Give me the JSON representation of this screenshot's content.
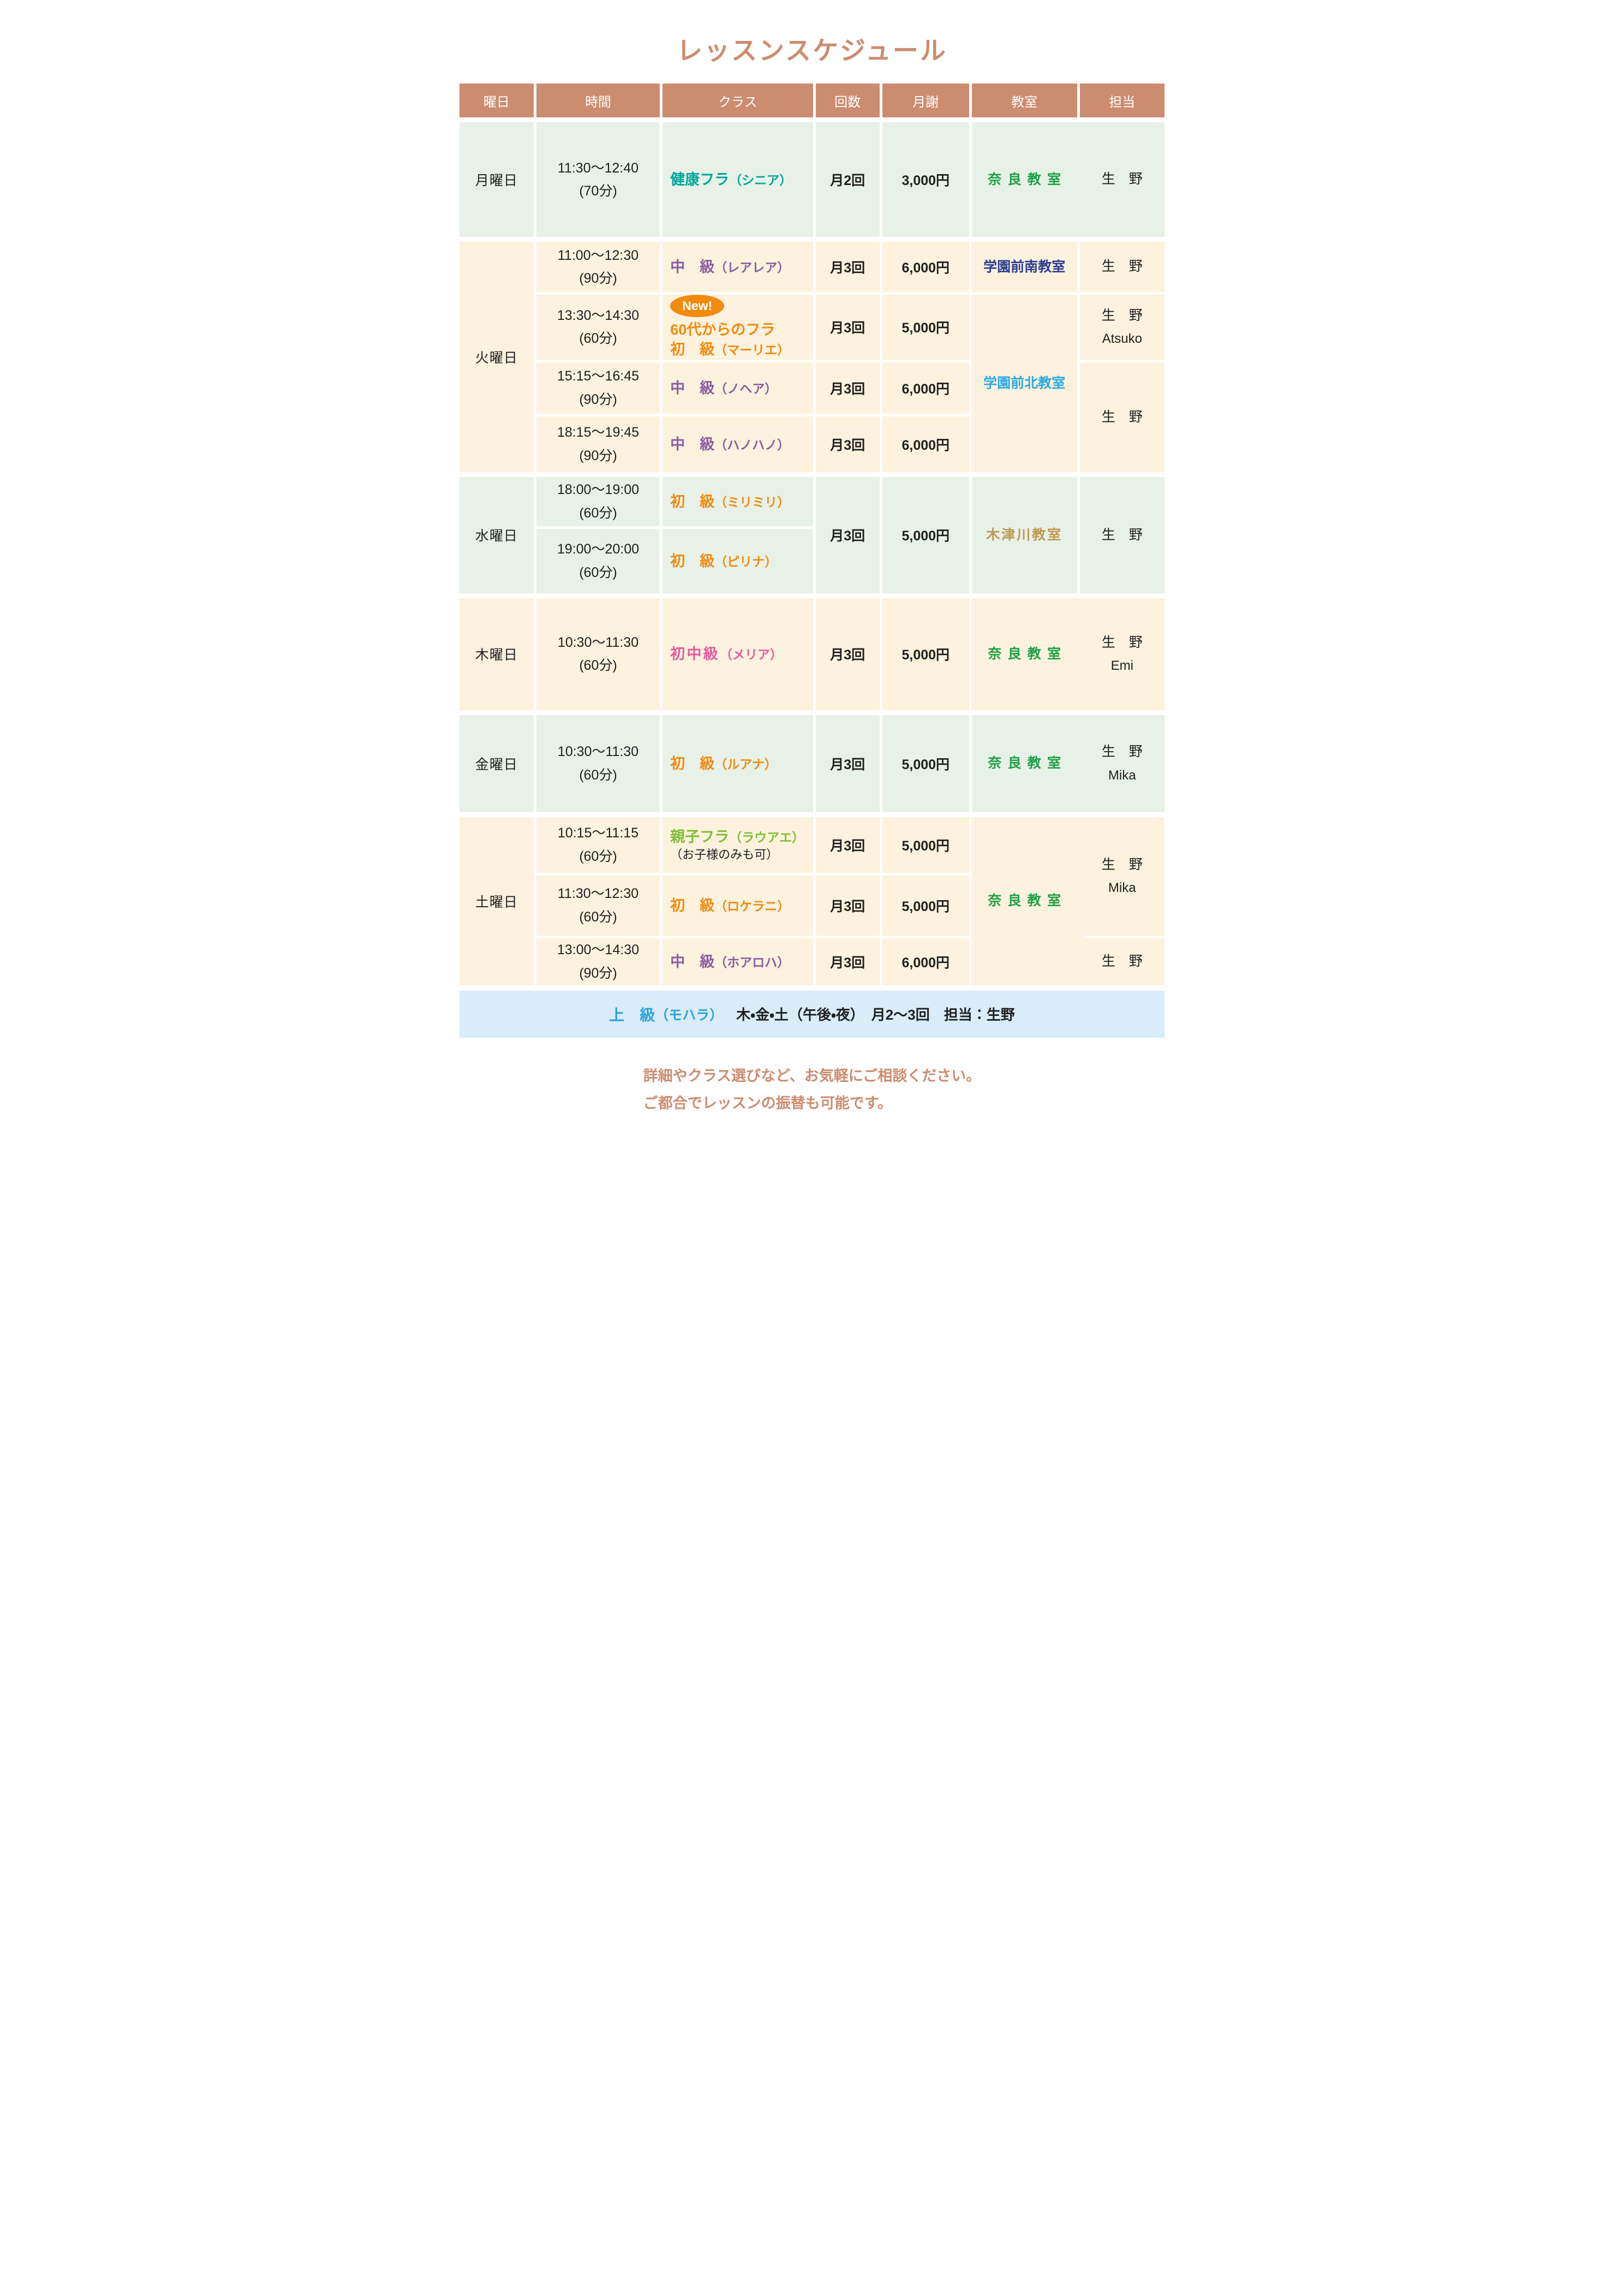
{
  "title": "レッスンスケジュール",
  "header": {
    "columns": [
      "曜日",
      "時間",
      "クラス",
      "回数",
      "月謝",
      "教室",
      "担当"
    ]
  },
  "colors": {
    "accent_salmon": "#CC8C70",
    "class_teal": "#00A79B",
    "class_purple": "#8B5BA4",
    "class_orange": "#F28A0E",
    "class_pink": "#E75A9F",
    "class_lime": "#7FBE38",
    "room_green": "#1FA046",
    "room_navy": "#2B3D8F",
    "room_skyblue": "#2BA9E1",
    "room_gold": "#BC9A52",
    "banner_text_blue": "#2AA3DE",
    "row_green_bg": "#E8F1E8",
    "row_cream_bg": "#FCF2DD",
    "banner_bg": "#D9ECF8"
  },
  "days": [
    {
      "label": "月曜日",
      "rows": [
        {
          "time": "11:30～12:40",
          "duration": "(70分)",
          "class_main": "健康フラ",
          "class_note": "（シニア）",
          "count": "月2回",
          "fee": "3,000円"
        }
      ],
      "rooms": [
        {
          "name": "奈良教室"
        }
      ],
      "staff": [
        {
          "name": "生　野"
        }
      ]
    },
    {
      "label": "火曜日",
      "rows": [
        {
          "time": "11:00～12:30",
          "duration": "(90分)",
          "class_main": "中　級",
          "class_note": "（レアレア）",
          "count": "月3回",
          "fee": "6,000円"
        },
        {
          "badge": "New!",
          "class_line": "60代からのフラ",
          "time": "13:30～14:30",
          "duration": "(60分)",
          "class_main": "初　級",
          "class_note": "（マーリエ）",
          "count": "月3回",
          "fee": "5,000円"
        },
        {
          "time": "15:15～16:45",
          "duration": "(90分)",
          "class_main": "中　級",
          "class_note": "（ノヘア）",
          "count": "月3回",
          "fee": "6,000円"
        },
        {
          "time": "18:15～19:45",
          "duration": "(90分)",
          "class_main": "中　級",
          "class_note": "（ハノハノ）",
          "count": "月3回",
          "fee": "6,000円"
        }
      ],
      "rooms": [
        {
          "name": "学園前南教室"
        },
        {
          "name": "学園前北教室"
        }
      ],
      "staff": [
        {
          "name": "生　野"
        },
        {
          "name": "生　野",
          "name2": "Atsuko"
        },
        {
          "name": "生　野"
        }
      ]
    },
    {
      "label": "水曜日",
      "rows": [
        {
          "time": "18:00～19:00",
          "duration": "(60分)",
          "class_main": "初　級",
          "class_note": "（ミリミリ）"
        },
        {
          "time": "19:00～20:00",
          "duration": "(60分)",
          "class_main": "初　級",
          "class_note": "（ピリナ）"
        }
      ],
      "shared": {
        "count": "月3回",
        "fee": "5,000円"
      },
      "rooms": [
        {
          "name": "木津川教室"
        }
      ],
      "staff": [
        {
          "name": "生　野"
        }
      ]
    },
    {
      "label": "木曜日",
      "rows": [
        {
          "time": "10:30～11:30",
          "duration": "(60分)",
          "class_main": "初中級",
          "class_note": "（メリア）",
          "count": "月3回",
          "fee": "5,000円"
        }
      ],
      "rooms": [
        {
          "name": "奈良教室"
        }
      ],
      "staff": [
        {
          "name": "生　野",
          "name2": "Emi"
        }
      ]
    },
    {
      "label": "金曜日",
      "rows": [
        {
          "time": "10:30～11:30",
          "duration": "(60分)",
          "class_main": "初　級",
          "class_note": "（ルアナ）",
          "count": "月3回",
          "fee": "5,000円"
        }
      ],
      "rooms": [
        {
          "name": "奈良教室"
        }
      ],
      "staff": [
        {
          "name": "生　野",
          "name2": "Mika"
        }
      ]
    },
    {
      "label": "土曜日",
      "rows": [
        {
          "time": "10:15～11:15",
          "duration": "(60分)",
          "class_main": "親子フラ",
          "class_note": "（ラウアエ）",
          "class_sub": "（お子様のみも可）",
          "count": "月3回",
          "fee": "5,000円"
        },
        {
          "time": "11:30～12:30",
          "duration": "(60分)",
          "class_main": "初　級",
          "class_note": "（ロケラニ）",
          "count": "月3回",
          "fee": "5,000円"
        },
        {
          "time": "13:00～14:30",
          "duration": "(90分)",
          "class_main": "中　級",
          "class_note": "（ホアロハ）",
          "count": "月3回",
          "fee": "6,000円"
        }
      ],
      "rooms": [
        {
          "name": "奈良教室"
        }
      ],
      "staff": [
        {
          "name": "生　野",
          "name2": "Mika"
        },
        {
          "name": "生　野"
        }
      ]
    }
  ],
  "banner": {
    "level": "上　級",
    "level_note": "（モハラ）",
    "details": "木・金・土（午後・夜）　月2～3回　担当：生野"
  },
  "footer": {
    "line1": "詳細やクラス選びなど、お気軽にご相談ください。",
    "line2": "ご都合でレッスンの振替も可能です。"
  }
}
